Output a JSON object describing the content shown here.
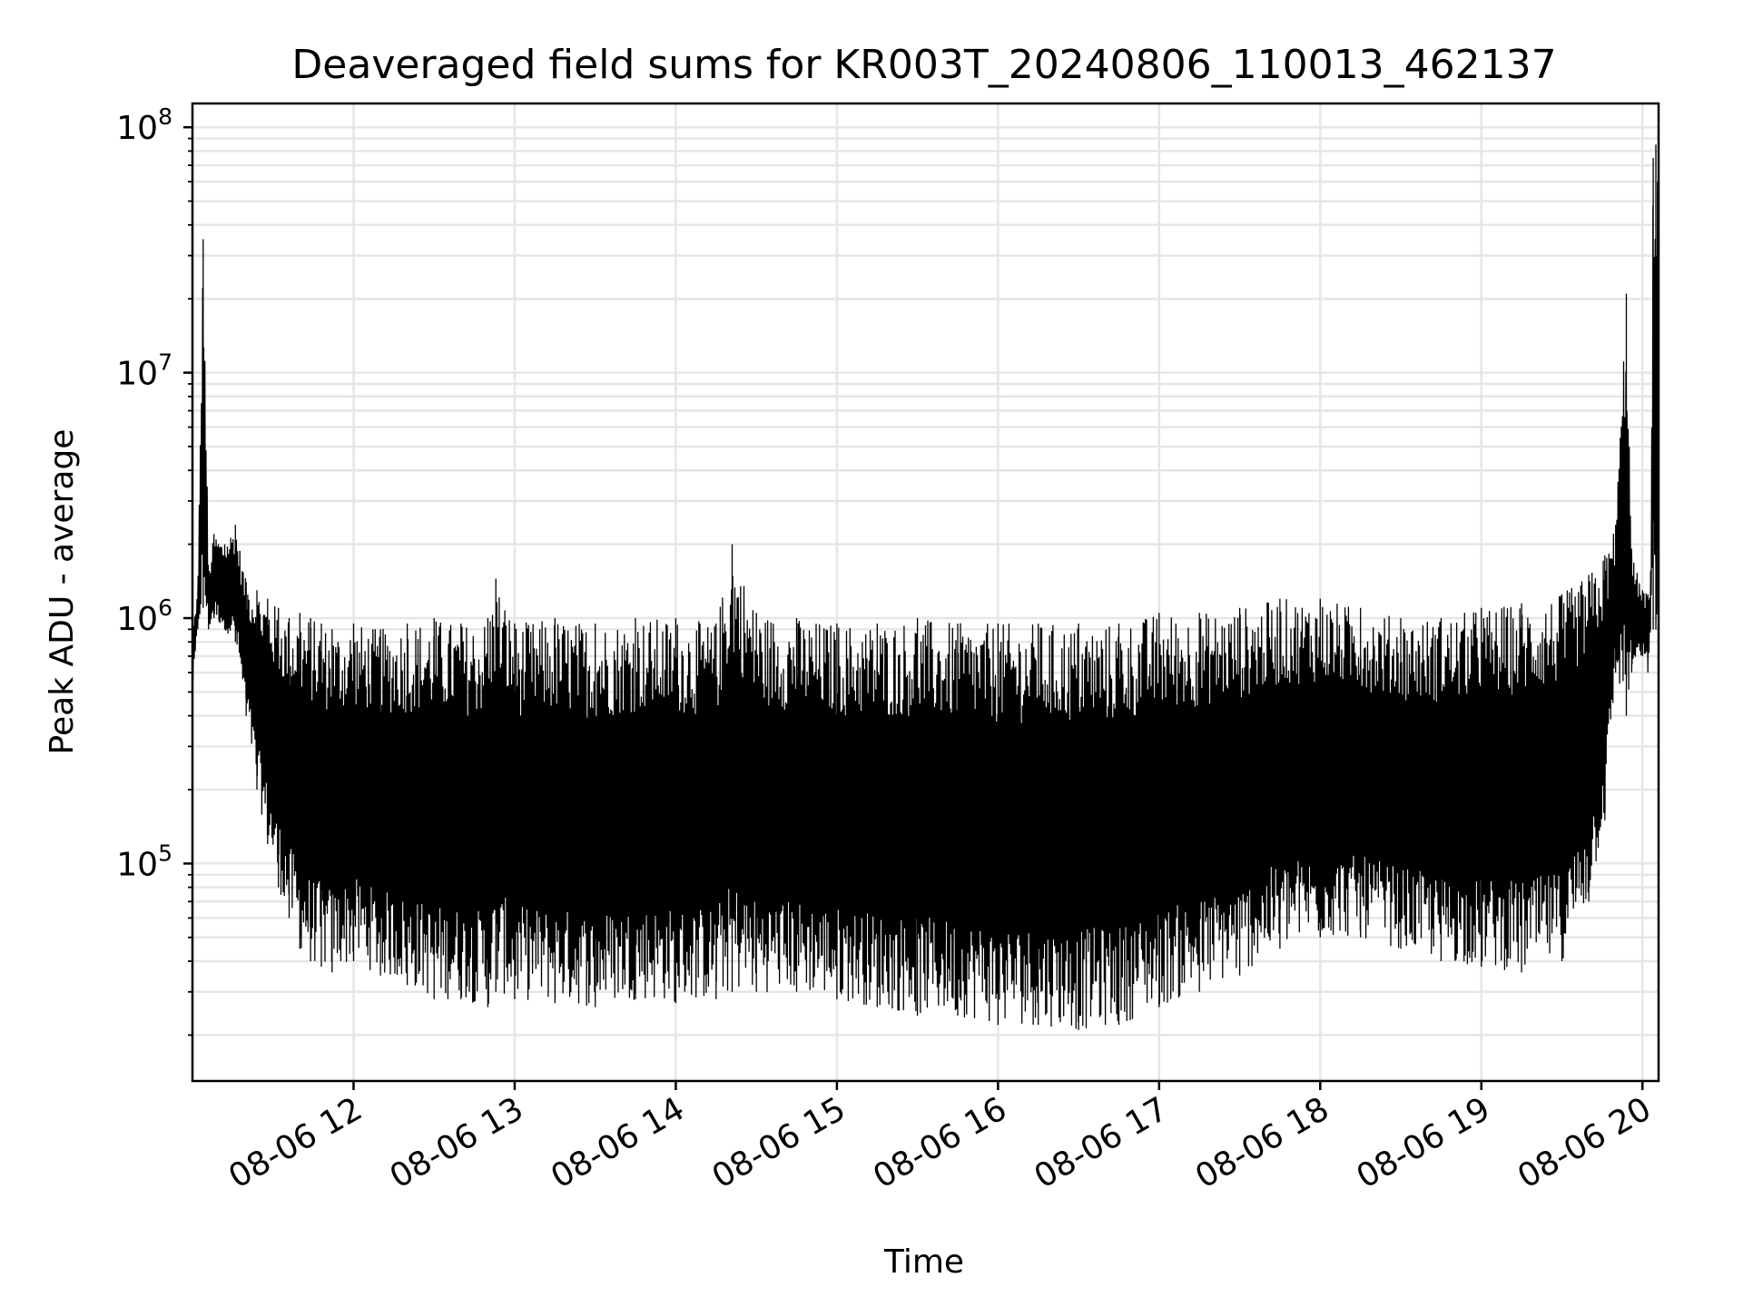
{
  "chart_data": {
    "type": "line",
    "title": "Deaveraged field sums for KR003T_20240806_110013_462137",
    "xlabel": "Time",
    "ylabel": "Peak ADU - average",
    "yscale": "log",
    "grid": "on (major and minor)",
    "legend": "none",
    "xlim": [
      "2024-08-06 11:00",
      "2024-08-06 20:06"
    ],
    "ylim": [
      13000,
      125000000
    ],
    "x_ticks": [
      "08-06 12",
      "08-06 13",
      "08-06 14",
      "08-06 15",
      "08-06 16",
      "08-06 17",
      "08-06 18",
      "08-06 19",
      "08-06 20"
    ],
    "y_ticks": [
      {
        "value": 100000,
        "base": "10",
        "exp": "5"
      },
      {
        "value": 1000000,
        "base": "10",
        "exp": "6"
      },
      {
        "value": 10000000,
        "base": "10",
        "exp": "7"
      },
      {
        "value": 100000000,
        "base": "10",
        "exp": "8"
      }
    ],
    "line_color": "#000000",
    "series": [
      {
        "x": [
          "2024-08-06 11:00",
          "2024-08-06 11:02",
          "2024-08-06 11:04",
          "2024-08-06 11:06",
          "2024-08-06 11:08",
          "2024-08-06 11:12",
          "2024-08-06 11:16",
          "2024-08-06 11:20",
          "2024-08-06 11:24",
          "2024-08-06 11:28",
          "2024-08-06 11:32",
          "2024-08-06 11:36",
          "2024-08-06 11:40",
          "2024-08-06 11:44",
          "2024-08-06 11:48",
          "2024-08-06 11:52",
          "2024-08-06 12:00",
          "2024-08-06 12:10",
          "2024-08-06 12:20",
          "2024-08-06 12:30",
          "2024-08-06 12:40",
          "2024-08-06 12:50",
          "2024-08-06 12:53",
          "2024-08-06 13:00",
          "2024-08-06 13:15",
          "2024-08-06 13:30",
          "2024-08-06 13:45",
          "2024-08-06 14:00",
          "2024-08-06 14:15",
          "2024-08-06 14:21",
          "2024-08-06 14:30",
          "2024-08-06 14:45",
          "2024-08-06 15:00",
          "2024-08-06 15:15",
          "2024-08-06 15:30",
          "2024-08-06 15:45",
          "2024-08-06 16:00",
          "2024-08-06 16:15",
          "2024-08-06 16:30",
          "2024-08-06 16:45",
          "2024-08-06 17:00",
          "2024-08-06 17:15",
          "2024-08-06 17:30",
          "2024-08-06 17:45",
          "2024-08-06 18:00",
          "2024-08-06 18:15",
          "2024-08-06 18:30",
          "2024-08-06 18:45",
          "2024-08-06 19:00",
          "2024-08-06 19:15",
          "2024-08-06 19:30",
          "2024-08-06 19:40",
          "2024-08-06 19:46",
          "2024-08-06 19:50",
          "2024-08-06 19:54",
          "2024-08-06 19:56",
          "2024-08-06 20:00",
          "2024-08-06 20:02",
          "2024-08-06 20:03",
          "2024-08-06 20:04",
          "2024-08-06 20:05",
          "2024-08-06 20:06"
        ],
        "y_high": [
          900000,
          1300000,
          35000000,
          1500000,
          2200000,
          2000000,
          2400000,
          1400000,
          1300000,
          1200000,
          1100000,
          1000000,
          1050000,
          1000000,
          950000,
          900000,
          950000,
          900000,
          950000,
          1000000,
          950000,
          1000000,
          1450000,
          950000,
          1000000,
          950000,
          1000000,
          1000000,
          950000,
          2000000,
          1050000,
          1000000,
          950000,
          950000,
          1000000,
          950000,
          950000,
          950000,
          950000,
          950000,
          1050000,
          1050000,
          1100000,
          1200000,
          1200000,
          1100000,
          1000000,
          1000000,
          1100000,
          1150000,
          1250000,
          1500000,
          1800000,
          2400000,
          21000000,
          1800000,
          1300000,
          1250000,
          1300000,
          75000000,
          85000000,
          85000000
        ],
        "y_low": [
          500000,
          900000,
          1100000,
          900000,
          1000000,
          900000,
          800000,
          400000,
          200000,
          120000,
          80000,
          60000,
          45000,
          40000,
          38000,
          36000,
          40000,
          35000,
          32000,
          28000,
          28000,
          26000,
          30000,
          28000,
          27000,
          26000,
          28000,
          27000,
          28000,
          30000,
          30000,
          30000,
          28000,
          26000,
          24000,
          24000,
          22000,
          22000,
          21000,
          22000,
          26000,
          30000,
          35000,
          45000,
          50000,
          50000,
          45000,
          40000,
          38000,
          36000,
          40000,
          70000,
          150000,
          600000,
          400000,
          600000,
          700000,
          600000,
          900000,
          900000,
          900000,
          900000
        ]
      }
    ]
  }
}
